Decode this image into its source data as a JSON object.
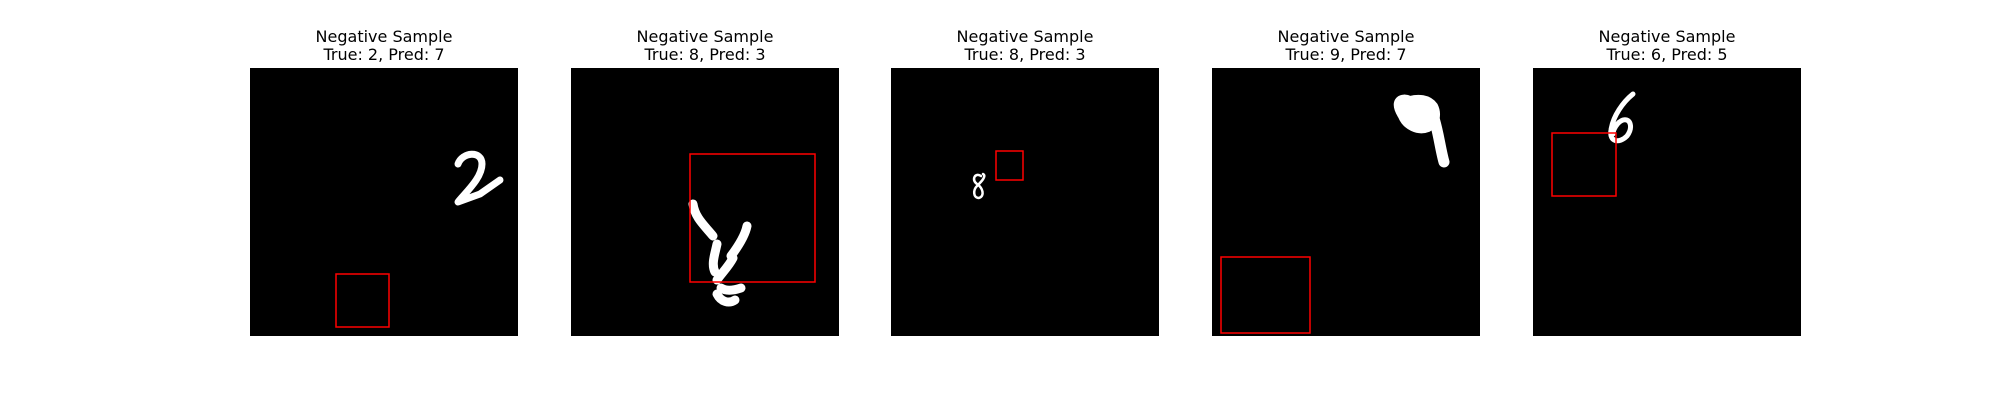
{
  "panels": [
    {
      "title": "Negative Sample",
      "subtitle": "True: 2, Pred: 7",
      "true_label": 2,
      "pred_label": 7,
      "digit": "2",
      "box_color": "#ff0000"
    },
    {
      "title": "Negative Sample",
      "subtitle": "True: 8, Pred: 3",
      "true_label": 8,
      "pred_label": 3,
      "digit": "8",
      "box_color": "#ff0000"
    },
    {
      "title": "Negative Sample",
      "subtitle": "True: 8, Pred: 3",
      "true_label": 8,
      "pred_label": 3,
      "digit": "8",
      "box_color": "#ff0000"
    },
    {
      "title": "Negative Sample",
      "subtitle": "True: 9, Pred: 7",
      "true_label": 9,
      "pred_label": 7,
      "digit": "9",
      "box_color": "#ff0000"
    },
    {
      "title": "Negative Sample",
      "subtitle": "True: 6, Pred: 5",
      "true_label": 6,
      "pred_label": 5,
      "digit": "6",
      "box_color": "#ff0000"
    }
  ]
}
